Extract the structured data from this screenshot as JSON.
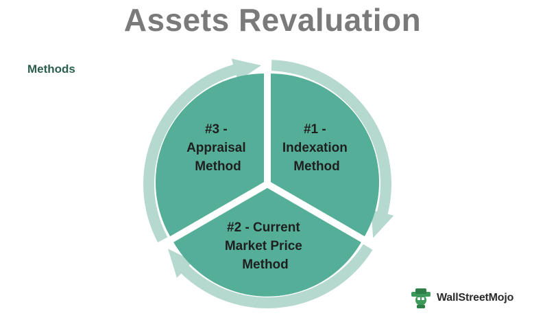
{
  "title": "Assets Revaluation",
  "subtitle": "Methods",
  "segments": [
    {
      "lines": [
        "#1 -",
        "Indexation",
        "Method"
      ]
    },
    {
      "lines": [
        "#2 - Current",
        "Market Price",
        "Method"
      ]
    },
    {
      "lines": [
        "#3 -",
        "Appraisal",
        "Method"
      ]
    }
  ],
  "brand": {
    "name": "WallStreetMojo"
  },
  "colors": {
    "segment_fill": "#55ae98",
    "ring": "#b5d9cf",
    "title": "#7a7a7a",
    "subtitle": "#2a5e4e",
    "logo_green": "#3e9a5b"
  }
}
